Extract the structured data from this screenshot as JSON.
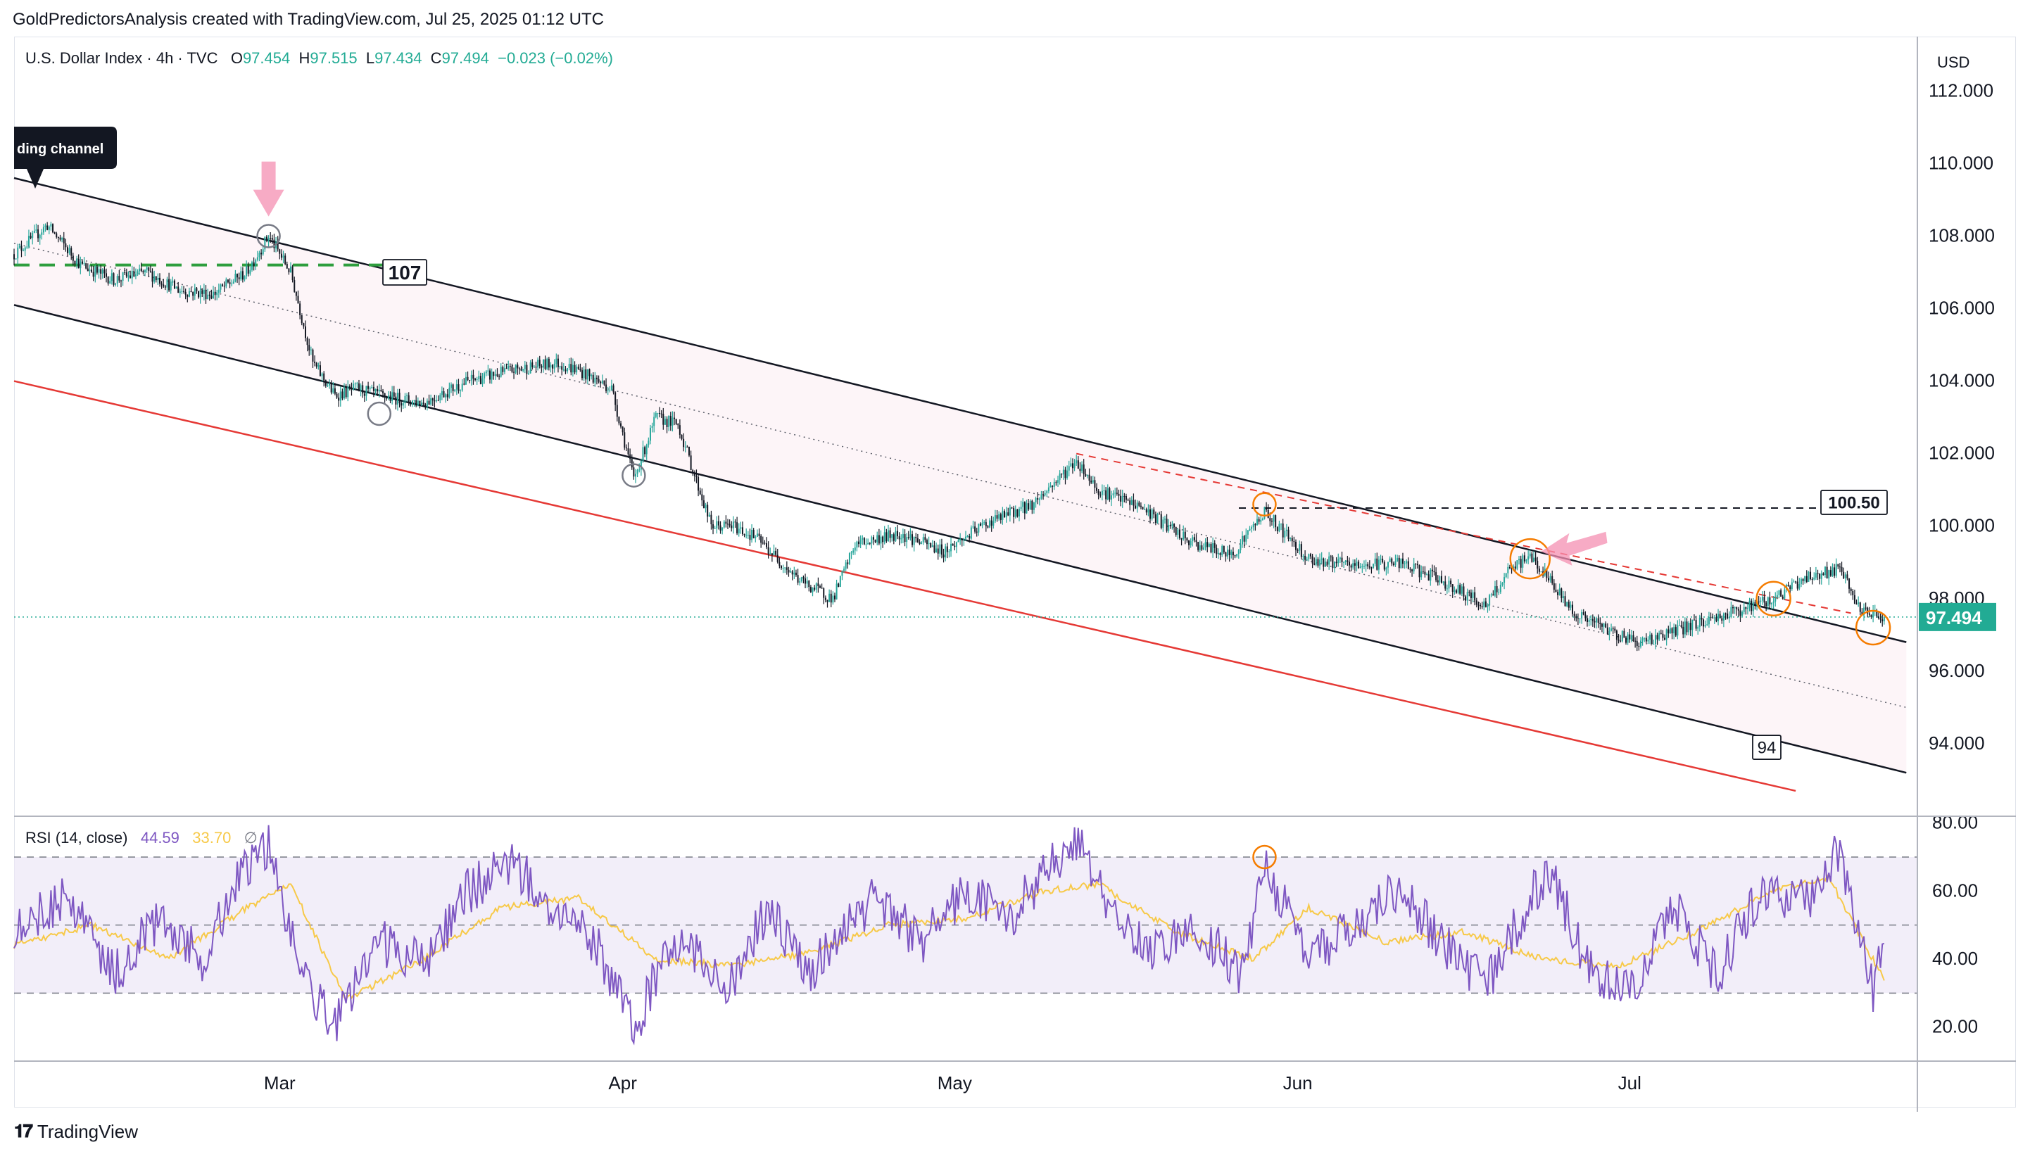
{
  "attribution": "GoldPredictorsAnalysis created with TradingView.com, Jul 25, 2025 01:12 UTC",
  "legend": {
    "symbol": "U.S. Dollar Index · 4h · TVC",
    "open_label": "O",
    "open": "97.454",
    "high_label": "H",
    "high": "97.515",
    "low_label": "L",
    "low": "97.434",
    "close_label": "C",
    "close": "97.494",
    "change": "−0.023 (−0.02%)"
  },
  "rsi_legend": {
    "label": "RSI (14, close)",
    "rsi_value": "44.59",
    "ma_value": "33.70",
    "extra": "∅"
  },
  "currency": "USD",
  "footer": {
    "logo_text": "TradingView"
  },
  "annotations": {
    "channel_label": "ding channel",
    "label_107": "107",
    "label_94": "94",
    "label_100_50": "100.50",
    "last_price": "97.494"
  },
  "colors": {
    "up": "#26a69a",
    "down": "#131722",
    "channel": "#131722",
    "red_line": "#e53935",
    "green_dash": "#2e9e3e",
    "rsi": "#7e57c2",
    "rsi_ma": "#f7c948",
    "rsi_band": "#ede7f6",
    "price_tag": "#22ab94",
    "orange_circle": "#f57c00",
    "pink_arrow": "#f48fb1"
  },
  "chart_data": [
    {
      "type": "candlestick",
      "title": "U.S. Dollar Index · 4h · TVC",
      "ylabel": "USD",
      "ylim": [
        92.0,
        113.5
      ],
      "y_ticks": [
        "112.000",
        "110.000",
        "108.000",
        "106.000",
        "104.000",
        "102.000",
        "100.000",
        "98.000",
        "96.000",
        "94.000"
      ],
      "x_ticks": [
        "Mar",
        "Apr",
        "May",
        "Jun",
        "Jul"
      ],
      "x_range_dates": [
        "2025-02-05",
        "2025-07-27"
      ],
      "last_price": 97.494,
      "path_anchors_date": [
        "2025-02-05",
        "2025-02-08",
        "2025-02-11",
        "2025-02-14",
        "2025-02-17",
        "2025-02-20",
        "2025-02-23",
        "2025-02-26",
        "2025-02-28",
        "2025-03-02",
        "2025-03-04",
        "2025-03-06",
        "2025-03-08",
        "2025-03-10",
        "2025-03-14",
        "2025-03-18",
        "2025-03-22",
        "2025-03-26",
        "2025-03-28",
        "2025-03-31",
        "2025-04-02",
        "2025-04-04",
        "2025-04-06",
        "2025-04-09",
        "2025-04-11",
        "2025-04-13",
        "2025-04-17",
        "2025-04-20",
        "2025-04-22",
        "2025-04-26",
        "2025-04-30",
        "2025-05-04",
        "2025-05-08",
        "2025-05-11",
        "2025-05-12",
        "2025-05-14",
        "2025-05-18",
        "2025-05-22",
        "2025-05-26",
        "2025-05-29",
        "2025-06-02",
        "2025-06-06",
        "2025-06-10",
        "2025-06-14",
        "2025-06-18",
        "2025-06-20",
        "2025-06-22",
        "2025-06-24",
        "2025-06-26",
        "2025-06-30",
        "2025-07-02",
        "2025-07-06",
        "2025-07-10",
        "2025-07-14",
        "2025-07-17",
        "2025-07-20",
        "2025-07-22",
        "2025-07-24"
      ],
      "path_anchors_value": [
        107.5,
        108.3,
        107.2,
        106.8,
        107.0,
        106.5,
        106.4,
        107.0,
        108.0,
        107.0,
        104.5,
        103.6,
        103.8,
        103.6,
        103.4,
        104.0,
        104.3,
        104.5,
        104.3,
        103.8,
        101.3,
        103.0,
        102.8,
        100.0,
        100.0,
        99.7,
        98.5,
        98.0,
        99.5,
        99.8,
        99.3,
        100.1,
        100.6,
        101.5,
        101.8,
        101.0,
        100.5,
        99.6,
        99.2,
        100.4,
        99.1,
        98.9,
        99.0,
        98.5,
        97.8,
        98.7,
        99.2,
        98.4,
        97.6,
        97.0,
        96.8,
        97.2,
        97.6,
        98.0,
        98.6,
        98.8,
        97.6,
        97.494
      ],
      "overlays": {
        "descending_channel_upper": {
          "from": [
            "2025-02-05",
            109.6
          ],
          "to": [
            "2025-07-26",
            96.8
          ]
        },
        "descending_channel_mid": {
          "from": [
            "2025-02-05",
            107.8
          ],
          "to": [
            "2025-07-26",
            95.0
          ]
        },
        "descending_channel_lower": {
          "from": [
            "2025-02-05",
            106.1
          ],
          "to": [
            "2025-07-26",
            93.2
          ]
        },
        "red_support": {
          "from": [
            "2025-02-05",
            104.0
          ],
          "to": [
            "2025-07-16",
            92.7
          ]
        },
        "green_level": 107.2,
        "black_level": 100.5,
        "red_dashed_trend": {
          "from": [
            "2025-05-12",
            102.0
          ],
          "to": [
            "2025-07-21",
            97.6
          ]
        }
      }
    },
    {
      "type": "line",
      "title": "RSI (14, close)",
      "ylim": [
        10,
        82
      ],
      "y_ticks": [
        "80.00",
        "60.00",
        "40.00",
        "20.00"
      ],
      "bands": [
        30,
        50,
        70
      ],
      "series": [
        {
          "name": "RSI",
          "x_date": [
            "2025-02-05",
            "2025-02-10",
            "2025-02-14",
            "2025-02-18",
            "2025-02-22",
            "2025-02-25",
            "2025-02-28",
            "2025-03-03",
            "2025-03-06",
            "2025-03-10",
            "2025-03-14",
            "2025-03-18",
            "2025-03-22",
            "2025-03-26",
            "2025-03-30",
            "2025-04-02",
            "2025-04-05",
            "2025-04-08",
            "2025-04-11",
            "2025-04-14",
            "2025-04-18",
            "2025-04-21",
            "2025-04-24",
            "2025-04-28",
            "2025-05-02",
            "2025-05-06",
            "2025-05-09",
            "2025-05-12",
            "2025-05-15",
            "2025-05-19",
            "2025-05-23",
            "2025-05-27",
            "2025-05-29",
            "2025-06-02",
            "2025-06-06",
            "2025-06-10",
            "2025-06-14",
            "2025-06-18",
            "2025-06-22",
            "2025-06-24",
            "2025-06-27",
            "2025-07-01",
            "2025-07-05",
            "2025-07-09",
            "2025-07-13",
            "2025-07-17",
            "2025-07-20",
            "2025-07-23",
            "2025-07-24"
          ],
          "y": [
            50,
            58,
            35,
            52,
            40,
            62,
            74,
            35,
            20,
            45,
            38,
            60,
            68,
            55,
            42,
            18,
            45,
            40,
            32,
            55,
            35,
            50,
            58,
            45,
            60,
            52,
            65,
            75,
            55,
            42,
            50,
            35,
            68,
            40,
            50,
            60,
            45,
            32,
            58,
            66,
            38,
            30,
            55,
            35,
            62,
            56,
            72,
            30,
            44.59
          ]
        },
        {
          "name": "RSI-based MA",
          "x_date": [
            "2025-02-05",
            "2025-02-12",
            "2025-02-19",
            "2025-02-26",
            "2025-03-02",
            "2025-03-07",
            "2025-03-14",
            "2025-03-21",
            "2025-03-28",
            "2025-04-04",
            "2025-04-11",
            "2025-04-18",
            "2025-04-25",
            "2025-05-02",
            "2025-05-09",
            "2025-05-14",
            "2025-05-21",
            "2025-05-28",
            "2025-06-02",
            "2025-06-09",
            "2025-06-16",
            "2025-06-23",
            "2025-06-30",
            "2025-07-07",
            "2025-07-14",
            "2025-07-19",
            "2025-07-24"
          ],
          "y": [
            44,
            50,
            40,
            55,
            62,
            28,
            40,
            55,
            58,
            40,
            38,
            42,
            50,
            52,
            60,
            62,
            48,
            40,
            55,
            45,
            48,
            40,
            38,
            48,
            60,
            64,
            33.7
          ]
        }
      ]
    }
  ]
}
